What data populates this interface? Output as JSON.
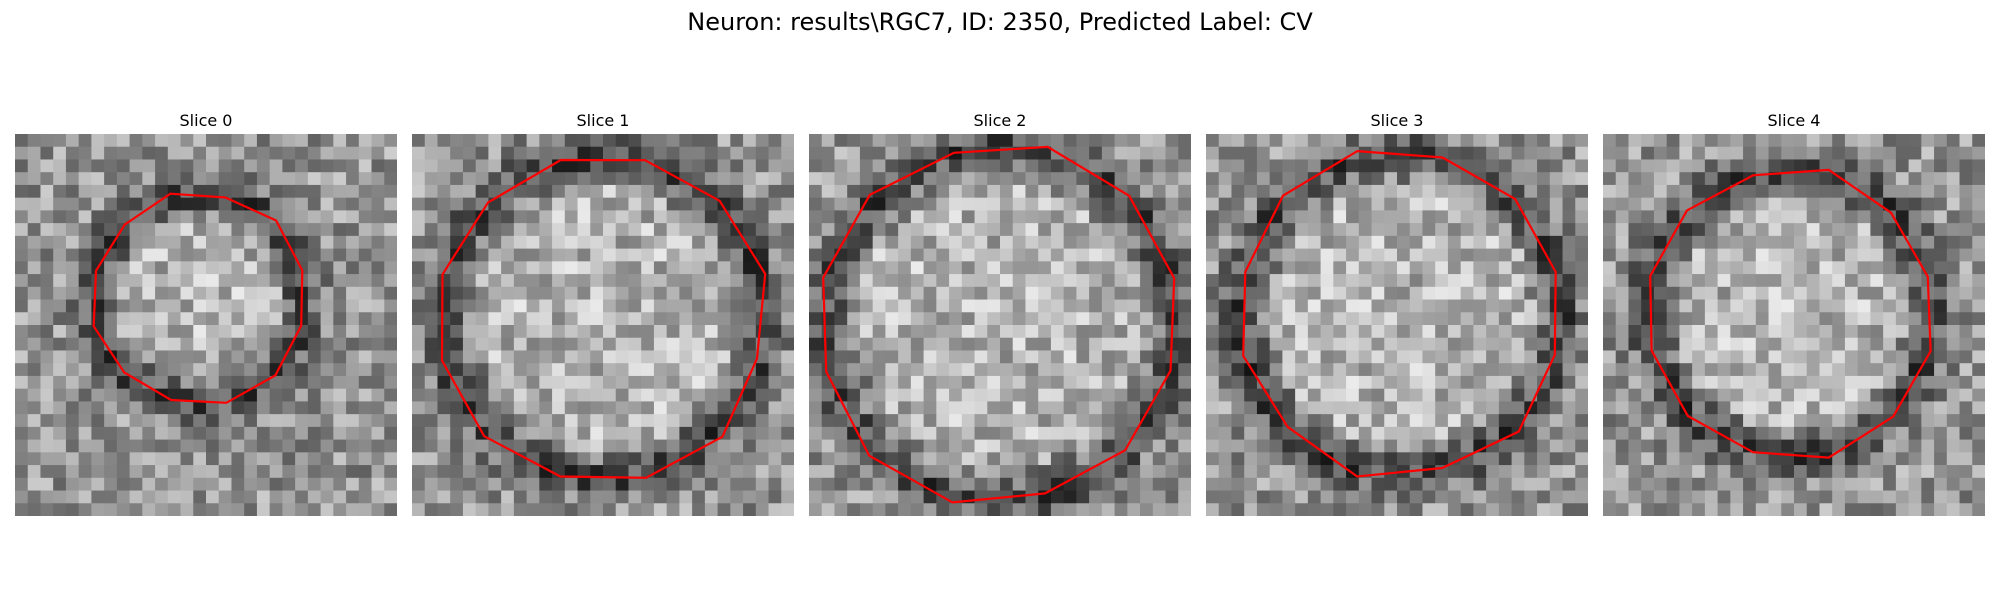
{
  "figure": {
    "title": "Neuron: results\\RGC7, ID: 2350, Predicted Label: CV"
  },
  "contour_color": "#ff0000",
  "colormap": "gray",
  "panels": [
    {
      "title": "Slice 0",
      "radius": 0.28,
      "center": [
        0.48,
        0.43
      ]
    },
    {
      "title": "Slice 1",
      "radius": 0.43,
      "center": [
        0.5,
        0.48
      ]
    },
    {
      "title": "Slice 2",
      "radius": 0.47,
      "center": [
        0.5,
        0.5
      ]
    },
    {
      "title": "Slice 3",
      "radius": 0.43,
      "center": [
        0.51,
        0.47
      ]
    },
    {
      "title": "Slice 4",
      "radius": 0.38,
      "center": [
        0.49,
        0.47
      ]
    }
  ]
}
